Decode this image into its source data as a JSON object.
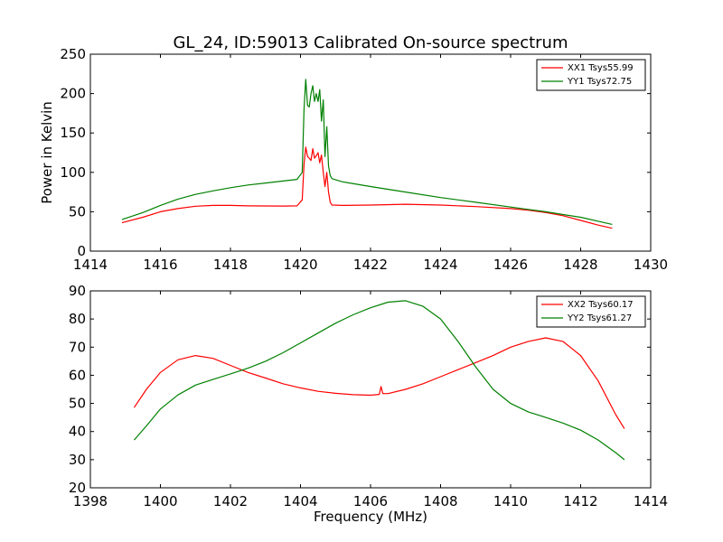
{
  "chart_data": [
    {
      "type": "line",
      "title": "GL_24, ID:59013 Calibrated On-source spectrum",
      "xlabel": "",
      "ylabel": "Power in Kelvin",
      "xlim": [
        1414,
        1430
      ],
      "ylim": [
        0,
        250
      ],
      "xticks": [
        "1414",
        "1416",
        "1418",
        "1420",
        "1422",
        "1424",
        "1426",
        "1428",
        "1430"
      ],
      "yticks": [
        "0",
        "50",
        "100",
        "150",
        "200",
        "250"
      ],
      "legend_position": "top-right",
      "series": [
        {
          "name": "XX1 Tsys55.99",
          "color": "#ff0000",
          "points": [
            [
              14.9,
              36
            ],
            [
              15.5,
              43
            ],
            [
              16,
              50
            ],
            [
              16.5,
              54
            ],
            [
              17,
              57
            ],
            [
              17.5,
              58
            ],
            [
              18,
              58
            ],
            [
              18.5,
              57.5
            ],
            [
              19,
              57.3
            ],
            [
              19.5,
              57.2
            ],
            [
              19.9,
              57.5
            ],
            [
              20.05,
              65
            ],
            [
              20.1,
              110
            ],
            [
              20.15,
              132
            ],
            [
              20.2,
              120
            ],
            [
              20.25,
              118
            ],
            [
              20.3,
              115
            ],
            [
              20.35,
              130
            ],
            [
              20.4,
              118
            ],
            [
              20.45,
              121
            ],
            [
              20.5,
              125
            ],
            [
              20.55,
              112
            ],
            [
              20.6,
              122
            ],
            [
              20.65,
              100
            ],
            [
              20.7,
              82
            ],
            [
              20.75,
              100
            ],
            [
              20.8,
              75
            ],
            [
              20.85,
              62
            ],
            [
              20.9,
              58.5
            ],
            [
              21.2,
              58
            ],
            [
              22,
              58.5
            ],
            [
              23,
              59.5
            ],
            [
              24,
              58.5
            ],
            [
              25,
              56.5
            ],
            [
              26,
              54
            ],
            [
              26.5,
              52
            ],
            [
              27,
              49
            ],
            [
              27.5,
              45
            ],
            [
              28,
              39
            ],
            [
              28.5,
              33
            ],
            [
              28.9,
              29
            ]
          ]
        },
        {
          "name": "YY1 Tsys72.75",
          "color": "#008000",
          "points": [
            [
              14.9,
              40
            ],
            [
              15.5,
              49
            ],
            [
              16,
              58
            ],
            [
              16.5,
              66
            ],
            [
              17,
              72
            ],
            [
              17.5,
              76.5
            ],
            [
              18,
              80.5
            ],
            [
              18.5,
              84
            ],
            [
              19,
              86.5
            ],
            [
              19.5,
              89
            ],
            [
              19.9,
              91
            ],
            [
              20.05,
              100
            ],
            [
              20.1,
              180
            ],
            [
              20.15,
              218
            ],
            [
              20.2,
              185
            ],
            [
              20.25,
              183
            ],
            [
              20.3,
              200
            ],
            [
              20.35,
              210
            ],
            [
              20.4,
              190
            ],
            [
              20.45,
              200
            ],
            [
              20.5,
              190
            ],
            [
              20.55,
              205
            ],
            [
              20.6,
              165
            ],
            [
              20.65,
              192
            ],
            [
              20.7,
              120
            ],
            [
              20.75,
              158
            ],
            [
              20.8,
              108
            ],
            [
              20.85,
              96
            ],
            [
              20.9,
              92
            ],
            [
              21.2,
              88
            ],
            [
              22,
              82
            ],
            [
              23,
              75
            ],
            [
              24,
              68
            ],
            [
              25,
              62
            ],
            [
              26,
              56
            ],
            [
              26.5,
              53
            ],
            [
              27,
              50
            ],
            [
              27.5,
              46.5
            ],
            [
              28,
              43
            ],
            [
              28.5,
              38
            ],
            [
              28.9,
              34
            ]
          ]
        }
      ]
    },
    {
      "type": "line",
      "title": "",
      "xlabel": "Frequency (MHz)",
      "ylabel": "",
      "xlim": [
        1398,
        1414
      ],
      "ylim": [
        20,
        90
      ],
      "xticks": [
        "1398",
        "1400",
        "1402",
        "1404",
        "1406",
        "1408",
        "1410",
        "1412",
        "1414"
      ],
      "yticks": [
        "20",
        "30",
        "40",
        "50",
        "60",
        "70",
        "80",
        "90"
      ],
      "legend_position": "top-right",
      "series": [
        {
          "name": "XX2 Tsys60.17",
          "color": "#ff0000",
          "points": [
            [
              1399.25,
              48.5
            ],
            [
              1399.6,
              55
            ],
            [
              1400,
              61
            ],
            [
              1400.5,
              65.5
            ],
            [
              1401,
              67
            ],
            [
              1401.5,
              66
            ],
            [
              1402,
              63.5
            ],
            [
              1402.5,
              61
            ],
            [
              1403,
              59
            ],
            [
              1403.5,
              57
            ],
            [
              1404,
              55.5
            ],
            [
              1404.5,
              54.3
            ],
            [
              1405,
              53.6
            ],
            [
              1405.5,
              53.1
            ],
            [
              1406,
              52.9
            ],
            [
              1406.25,
              53.2
            ],
            [
              1406.3,
              56
            ],
            [
              1406.35,
              53.5
            ],
            [
              1406.5,
              53.5
            ],
            [
              1407,
              55
            ],
            [
              1407.5,
              57
            ],
            [
              1408,
              59.5
            ],
            [
              1408.5,
              62
            ],
            [
              1409,
              64.5
            ],
            [
              1409.5,
              67
            ],
            [
              1410,
              70
            ],
            [
              1410.5,
              72
            ],
            [
              1411,
              73.3
            ],
            [
              1411.5,
              72
            ],
            [
              1412,
              67
            ],
            [
              1412.5,
              58
            ],
            [
              1413,
              46
            ],
            [
              1413.25,
              41
            ]
          ]
        },
        {
          "name": "YY2 Tsys61.27",
          "color": "#008000",
          "points": [
            [
              1399.25,
              37
            ],
            [
              1399.6,
              42
            ],
            [
              1400,
              48
            ],
            [
              1400.5,
              53
            ],
            [
              1401,
              56.5
            ],
            [
              1401.5,
              58.5
            ],
            [
              1402,
              60.5
            ],
            [
              1402.5,
              62.5
            ],
            [
              1403,
              65
            ],
            [
              1403.5,
              68
            ],
            [
              1404,
              71.5
            ],
            [
              1404.5,
              75
            ],
            [
              1405,
              78.5
            ],
            [
              1405.5,
              81.5
            ],
            [
              1406,
              84
            ],
            [
              1406.5,
              86
            ],
            [
              1407,
              86.5
            ],
            [
              1407.5,
              84.5
            ],
            [
              1408,
              80
            ],
            [
              1408.5,
              72
            ],
            [
              1409,
              63
            ],
            [
              1409.5,
              55
            ],
            [
              1410,
              50
            ],
            [
              1410.5,
              47
            ],
            [
              1411,
              45
            ],
            [
              1411.5,
              43
            ],
            [
              1412,
              40.5
            ],
            [
              1412.5,
              37
            ],
            [
              1413,
              32.5
            ],
            [
              1413.25,
              30
            ]
          ]
        }
      ]
    }
  ]
}
